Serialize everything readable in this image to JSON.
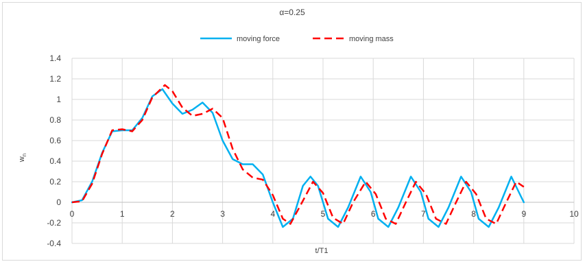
{
  "chart_data": {
    "type": "line",
    "title": "α=0.25",
    "xlabel": "t/T1",
    "ylabel": "w",
    "ylabel_subscript": "n",
    "xlim": [
      0,
      10
    ],
    "ylim": [
      -0.4,
      1.4
    ],
    "xticks": [
      "0",
      "1",
      "2",
      "3",
      "4",
      "5",
      "6",
      "7",
      "8",
      "9",
      "10"
    ],
    "yticks": [
      "1.4",
      "1.2",
      "1",
      "0.8",
      "0.6",
      "0.4",
      "0.2",
      "0",
      "-0.2",
      "-0.4"
    ],
    "grid": true,
    "legend_position": "top",
    "series": [
      {
        "name": "moving force",
        "color": "#00b0f0",
        "dash": "solid",
        "points": [
          [
            0,
            0
          ],
          [
            0.2,
            0.02
          ],
          [
            0.4,
            0.2
          ],
          [
            0.6,
            0.48
          ],
          [
            0.8,
            0.69
          ],
          [
            1,
            0.7
          ],
          [
            1.2,
            0.7
          ],
          [
            1.4,
            0.82
          ],
          [
            1.6,
            1.03
          ],
          [
            1.8,
            1.1
          ],
          [
            2,
            0.96
          ],
          [
            2.2,
            0.86
          ],
          [
            2.4,
            0.9
          ],
          [
            2.6,
            0.97
          ],
          [
            2.8,
            0.87
          ],
          [
            3,
            0.6
          ],
          [
            3.2,
            0.42
          ],
          [
            3.4,
            0.37
          ],
          [
            3.6,
            0.37
          ],
          [
            3.8,
            0.27
          ],
          [
            4,
            0
          ],
          [
            4.2,
            -0.24
          ],
          [
            4.4,
            -0.16
          ],
          [
            4.6,
            0.16
          ],
          [
            4.75,
            0.25
          ],
          [
            4.9,
            0.16
          ],
          [
            5.1,
            -0.16
          ],
          [
            5.3,
            -0.24
          ],
          [
            5.5,
            -0.05
          ],
          [
            5.75,
            0.25
          ],
          [
            5.95,
            0.1
          ],
          [
            6.1,
            -0.16
          ],
          [
            6.3,
            -0.24
          ],
          [
            6.5,
            -0.05
          ],
          [
            6.75,
            0.25
          ],
          [
            6.95,
            0.1
          ],
          [
            7.1,
            -0.16
          ],
          [
            7.3,
            -0.24
          ],
          [
            7.5,
            -0.05
          ],
          [
            7.75,
            0.25
          ],
          [
            7.95,
            0.1
          ],
          [
            8.1,
            -0.16
          ],
          [
            8.3,
            -0.24
          ],
          [
            8.5,
            -0.05
          ],
          [
            8.75,
            0.25
          ],
          [
            8.95,
            0.05
          ],
          [
            9,
            0
          ]
        ]
      },
      {
        "name": "moving mass",
        "color": "#ff0000",
        "dash": "dashed",
        "points": [
          [
            0,
            0
          ],
          [
            0.2,
            0.01
          ],
          [
            0.4,
            0.18
          ],
          [
            0.6,
            0.47
          ],
          [
            0.8,
            0.7
          ],
          [
            1,
            0.71
          ],
          [
            1.2,
            0.69
          ],
          [
            1.4,
            0.8
          ],
          [
            1.6,
            1.02
          ],
          [
            1.85,
            1.14
          ],
          [
            2,
            1.08
          ],
          [
            2.2,
            0.92
          ],
          [
            2.4,
            0.84
          ],
          [
            2.6,
            0.86
          ],
          [
            2.8,
            0.91
          ],
          [
            3,
            0.82
          ],
          [
            3.2,
            0.52
          ],
          [
            3.4,
            0.32
          ],
          [
            3.6,
            0.24
          ],
          [
            3.8,
            0.22
          ],
          [
            4,
            0.07
          ],
          [
            4.2,
            -0.16
          ],
          [
            4.35,
            -0.21
          ],
          [
            4.55,
            -0.03
          ],
          [
            4.8,
            0.2
          ],
          [
            5,
            0.09
          ],
          [
            5.2,
            -0.15
          ],
          [
            5.4,
            -0.21
          ],
          [
            5.6,
            0.0
          ],
          [
            5.85,
            0.2
          ],
          [
            6.05,
            0.08
          ],
          [
            6.25,
            -0.16
          ],
          [
            6.45,
            -0.21
          ],
          [
            6.65,
            0.0
          ],
          [
            6.85,
            0.2
          ],
          [
            7.05,
            0.08
          ],
          [
            7.25,
            -0.16
          ],
          [
            7.45,
            -0.21
          ],
          [
            7.65,
            0.0
          ],
          [
            7.85,
            0.2
          ],
          [
            8.05,
            0.08
          ],
          [
            8.25,
            -0.16
          ],
          [
            8.45,
            -0.21
          ],
          [
            8.65,
            0.0
          ],
          [
            8.85,
            0.2
          ],
          [
            9,
            0.15
          ]
        ]
      }
    ]
  }
}
